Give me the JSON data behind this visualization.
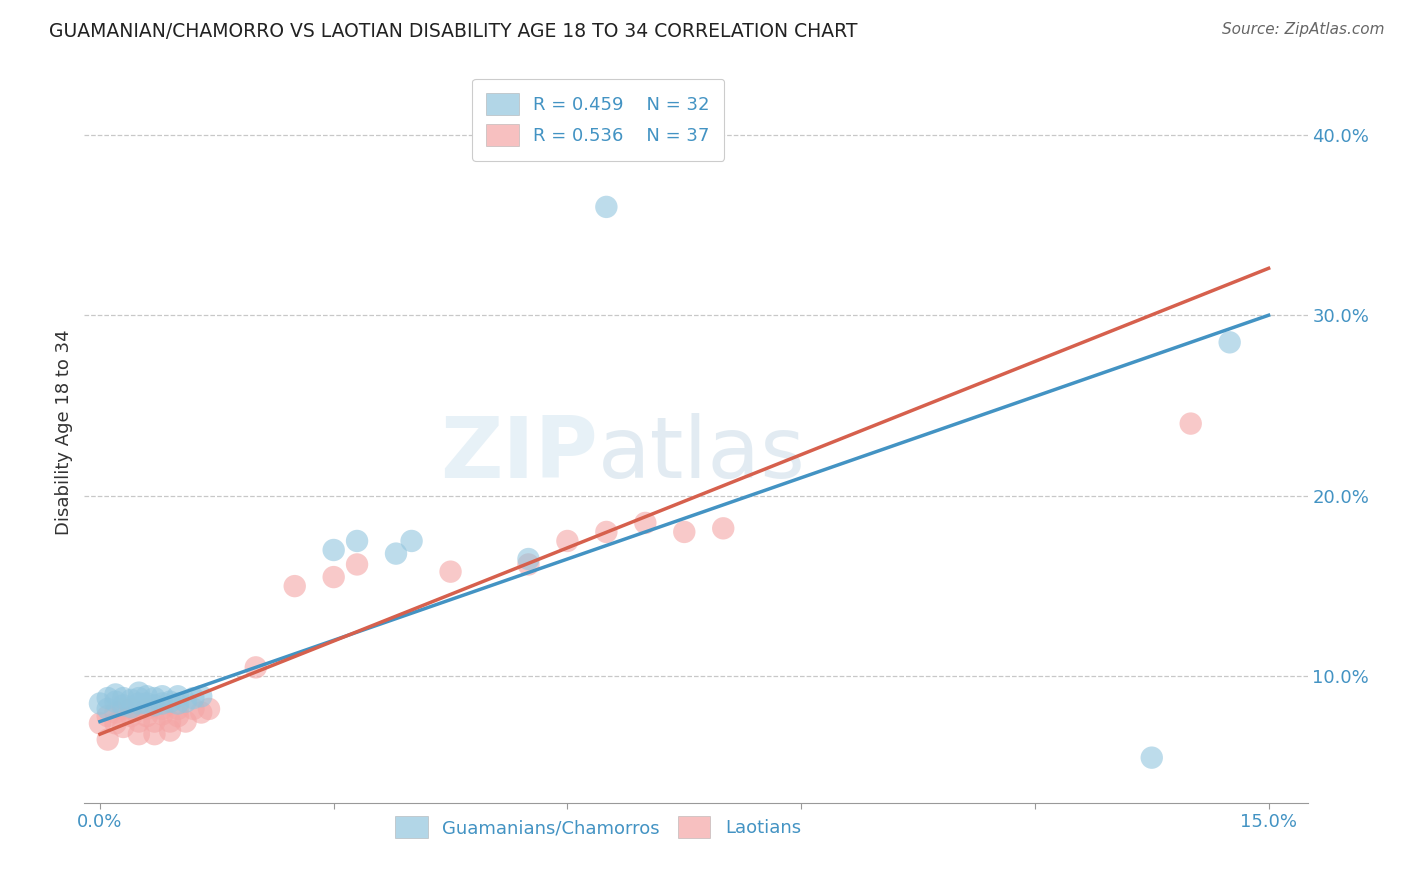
{
  "title": "GUAMANIAN/CHAMORRO VS LAOTIAN DISABILITY AGE 18 TO 34 CORRELATION CHART",
  "source": "Source: ZipAtlas.com",
  "ylabel_label": "Disability Age 18 to 34",
  "xlim": [
    -0.002,
    0.155
  ],
  "ylim": [
    0.03,
    0.44
  ],
  "xticks": [
    0.0,
    0.03,
    0.06,
    0.09,
    0.12,
    0.15
  ],
  "xtick_labels": [
    "0.0%",
    "",
    "",
    "",
    "",
    "15.0%"
  ],
  "yticks": [
    0.1,
    0.2,
    0.3,
    0.4
  ],
  "ytick_labels": [
    "10.0%",
    "20.0%",
    "30.0%",
    "40.0%"
  ],
  "guamanian_R": 0.459,
  "guamanian_N": 32,
  "laotian_R": 0.536,
  "laotian_N": 37,
  "legend_label_blue": "Guamanians/Chamorros",
  "legend_label_pink": "Laotians",
  "blue_color": "#92c5de",
  "pink_color": "#f4a6a6",
  "blue_line_color": "#4393c3",
  "pink_line_color": "#d6604d",
  "background_color": "#ffffff",
  "watermark": "ZIPatlas",
  "guamanian_x": [
    0.0,
    0.001,
    0.001,
    0.002,
    0.002,
    0.003,
    0.003,
    0.004,
    0.004,
    0.005,
    0.005,
    0.005,
    0.006,
    0.006,
    0.007,
    0.007,
    0.008,
    0.008,
    0.009,
    0.01,
    0.01,
    0.011,
    0.012,
    0.013,
    0.03,
    0.033,
    0.038,
    0.04,
    0.055,
    0.065,
    0.135,
    0.145
  ],
  "guamanian_y": [
    0.085,
    0.088,
    0.082,
    0.086,
    0.09,
    0.084,
    0.088,
    0.083,
    0.087,
    0.085,
    0.088,
    0.091,
    0.085,
    0.089,
    0.084,
    0.088,
    0.085,
    0.089,
    0.086,
    0.085,
    0.089,
    0.086,
    0.088,
    0.089,
    0.17,
    0.175,
    0.168,
    0.175,
    0.165,
    0.36,
    0.055,
    0.285
  ],
  "laotian_x": [
    0.0,
    0.001,
    0.001,
    0.002,
    0.002,
    0.003,
    0.003,
    0.004,
    0.004,
    0.005,
    0.005,
    0.006,
    0.006,
    0.007,
    0.007,
    0.008,
    0.008,
    0.009,
    0.009,
    0.01,
    0.01,
    0.011,
    0.012,
    0.013,
    0.014,
    0.02,
    0.025,
    0.03,
    0.033,
    0.045,
    0.055,
    0.06,
    0.065,
    0.07,
    0.075,
    0.08,
    0.14
  ],
  "laotian_y": [
    0.074,
    0.078,
    0.065,
    0.08,
    0.074,
    0.082,
    0.072,
    0.078,
    0.082,
    0.075,
    0.068,
    0.078,
    0.082,
    0.075,
    0.068,
    0.079,
    0.082,
    0.075,
    0.07,
    0.078,
    0.082,
    0.075,
    0.082,
    0.08,
    0.082,
    0.105,
    0.15,
    0.155,
    0.162,
    0.158,
    0.162,
    0.175,
    0.18,
    0.185,
    0.18,
    0.182,
    0.24
  ],
  "line_intercept_blue": 0.075,
  "line_slope_blue": 1.5,
  "line_intercept_pink": 0.068,
  "line_slope_pink": 1.72
}
